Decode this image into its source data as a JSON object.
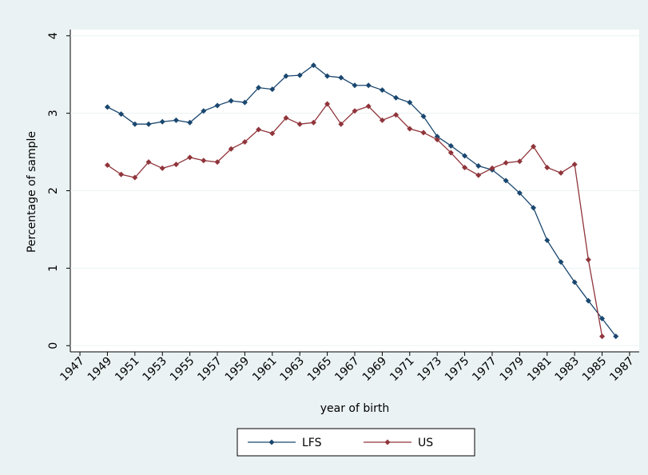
{
  "chart_data": {
    "type": "line",
    "x_label": "year of birth",
    "y_label": "Percentage of sample",
    "x": [
      1949,
      1950,
      1951,
      1952,
      1953,
      1954,
      1955,
      1956,
      1957,
      1958,
      1959,
      1960,
      1961,
      1962,
      1963,
      1964,
      1965,
      1966,
      1967,
      1968,
      1969,
      1970,
      1971,
      1972,
      1973,
      1974,
      1975,
      1976,
      1977,
      1978,
      1979,
      1980,
      1981,
      1982,
      1983,
      1984,
      1985,
      1986
    ],
    "series": [
      {
        "name": "LFS",
        "color": "#1a476f",
        "values": [
          3.08,
          2.99,
          2.86,
          2.86,
          2.89,
          2.91,
          2.88,
          3.03,
          3.1,
          3.16,
          3.14,
          3.33,
          3.31,
          3.48,
          3.49,
          3.62,
          3.48,
          3.46,
          3.36,
          3.36,
          3.3,
          3.2,
          3.14,
          2.96,
          2.7,
          2.58,
          2.45,
          2.32,
          2.27,
          2.13,
          1.97,
          1.78,
          1.36,
          1.08,
          0.82,
          0.58,
          0.35,
          0.12
        ]
      },
      {
        "name": "US",
        "color": "#90353b",
        "values": [
          2.33,
          2.21,
          2.17,
          2.37,
          2.29,
          2.34,
          2.43,
          2.39,
          2.37,
          2.54,
          2.63,
          2.79,
          2.74,
          2.94,
          2.86,
          2.88,
          3.12,
          2.86,
          3.03,
          3.09,
          2.91,
          2.98,
          2.8,
          2.75,
          2.66,
          2.49,
          2.3,
          2.2,
          2.29,
          2.36,
          2.38,
          2.57,
          2.3,
          2.23,
          2.34,
          1.11,
          0.12,
          null
        ]
      }
    ],
    "xlim": [
      1946.3,
      1987.7
    ],
    "xticks": [
      1947,
      1949,
      1951,
      1953,
      1955,
      1957,
      1959,
      1961,
      1963,
      1965,
      1967,
      1969,
      1971,
      1973,
      1975,
      1977,
      1979,
      1981,
      1983,
      1985,
      1987
    ],
    "ylim": [
      -0.08,
      4.08
    ],
    "yticks": [
      0,
      1,
      2,
      3,
      4
    ],
    "grid": true,
    "legend": "bottom"
  }
}
